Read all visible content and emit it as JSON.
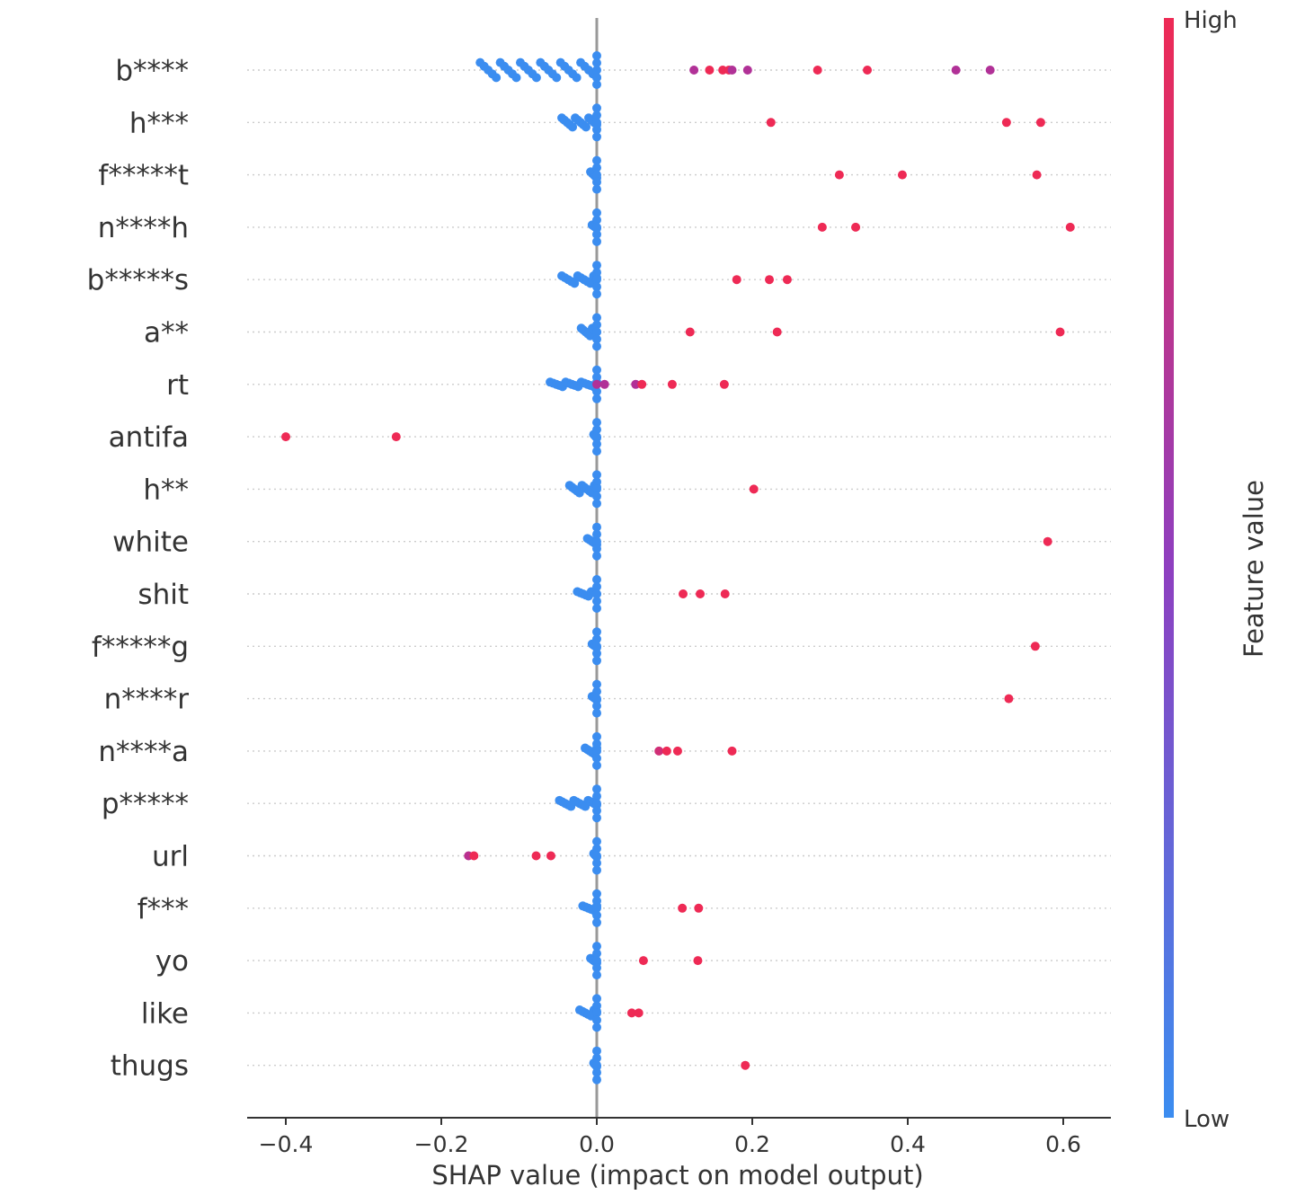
{
  "chart_data": {
    "type": "scatter",
    "subtype": "shap-beeswarm",
    "xlabel": "SHAP value (impact on model output)",
    "xlim": [
      -0.45,
      0.61
    ],
    "xticks": [
      -0.4,
      -0.2,
      0.0,
      0.2,
      0.4,
      0.6
    ],
    "xtick_labels": [
      "−0.4",
      "−0.2",
      "0.0",
      "0.2",
      "0.4",
      "0.6"
    ],
    "colorbar": {
      "title": "Feature value",
      "high_label": "High",
      "low_label": "Low",
      "low_color": "#3b8df0",
      "high_color": "#ee2a55",
      "mid_color": "#a233a8"
    },
    "features": [
      {
        "name": "b****",
        "cluster": {
          "from": -0.15,
          "to": 0.0,
          "n": 30,
          "spread": 1.0
        },
        "points": [
          [
            0.125,
            0.6
          ],
          [
            0.145,
            1.0
          ],
          [
            0.162,
            1.0
          ],
          [
            0.17,
            1.0
          ],
          [
            0.174,
            0.6
          ],
          [
            0.194,
            0.6
          ],
          [
            0.284,
            1.0
          ],
          [
            0.348,
            1.0
          ],
          [
            0.462,
            0.6
          ],
          [
            0.506,
            0.6
          ]
        ]
      },
      {
        "name": "h***",
        "cluster": {
          "from": -0.045,
          "to": 0.0,
          "n": 14,
          "spread": 0.6
        },
        "points": [
          [
            0.224,
            1.0
          ],
          [
            0.527,
            1.0
          ],
          [
            0.571,
            1.0
          ]
        ]
      },
      {
        "name": "f*****t",
        "cluster": {
          "from": -0.008,
          "to": 0.0,
          "n": 5,
          "spread": 0.4
        },
        "points": [
          [
            0.312,
            1.0
          ],
          [
            0.393,
            1.0
          ],
          [
            0.566,
            1.0
          ]
        ]
      },
      {
        "name": "n****h",
        "cluster": {
          "from": -0.006,
          "to": 0.0,
          "n": 4,
          "spread": 0.3
        },
        "points": [
          [
            0.29,
            1.0
          ],
          [
            0.333,
            1.0
          ],
          [
            0.609,
            1.0
          ]
        ]
      },
      {
        "name": "b*****s",
        "cluster": {
          "from": -0.045,
          "to": 0.0,
          "n": 12,
          "spread": 0.5
        },
        "points": [
          [
            0.18,
            1.0
          ],
          [
            0.222,
            1.0
          ],
          [
            0.245,
            1.0
          ]
        ]
      },
      {
        "name": "a**",
        "cluster": {
          "from": -0.02,
          "to": 0.0,
          "n": 8,
          "spread": 0.5
        },
        "points": [
          [
            0.12,
            1.0
          ],
          [
            0.232,
            1.0
          ],
          [
            0.596,
            1.0
          ]
        ]
      },
      {
        "name": "rt",
        "cluster": {
          "from": -0.06,
          "to": 0.0,
          "n": 16,
          "spread": 0.3
        },
        "points": [
          [
            0.0,
            0.6
          ],
          [
            0.01,
            0.6
          ],
          [
            0.05,
            0.6
          ],
          [
            0.058,
            1.0
          ],
          [
            0.097,
            1.0
          ],
          [
            0.164,
            1.0
          ]
        ]
      },
      {
        "name": "antifa",
        "cluster": {
          "from": -0.004,
          "to": 0.0,
          "n": 4,
          "spread": 0.3
        },
        "points": [
          [
            -0.4,
            1.0
          ],
          [
            -0.258,
            1.0
          ]
        ]
      },
      {
        "name": "h**",
        "cluster": {
          "from": -0.035,
          "to": 0.0,
          "n": 12,
          "spread": 0.5
        },
        "points": [
          [
            0.202,
            1.0
          ]
        ]
      },
      {
        "name": "white",
        "cluster": {
          "from": -0.012,
          "to": 0.0,
          "n": 5,
          "spread": 0.4
        },
        "points": [
          [
            0.58,
            1.0
          ]
        ]
      },
      {
        "name": "shit",
        "cluster": {
          "from": -0.025,
          "to": 0.0,
          "n": 8,
          "spread": 0.3
        },
        "points": [
          [
            0.111,
            1.0
          ],
          [
            0.133,
            1.0
          ],
          [
            0.165,
            1.0
          ]
        ]
      },
      {
        "name": "f*****g",
        "cluster": {
          "from": -0.006,
          "to": 0.0,
          "n": 4,
          "spread": 0.3
        },
        "points": [
          [
            0.564,
            1.0
          ]
        ]
      },
      {
        "name": "n****r",
        "cluster": {
          "from": -0.006,
          "to": 0.0,
          "n": 4,
          "spread": 0.3
        },
        "points": [
          [
            0.53,
            1.0
          ]
        ]
      },
      {
        "name": "n****a",
        "cluster": {
          "from": -0.015,
          "to": 0.0,
          "n": 6,
          "spread": 0.4
        },
        "points": [
          [
            0.08,
            0.8
          ],
          [
            0.09,
            1.0
          ],
          [
            0.104,
            1.0
          ],
          [
            0.174,
            1.0
          ]
        ]
      },
      {
        "name": "p*****",
        "cluster": {
          "from": -0.048,
          "to": 0.0,
          "n": 14,
          "spread": 0.4
        },
        "points": []
      },
      {
        "name": "url",
        "cluster": {
          "from": -0.004,
          "to": 0.0,
          "n": 4,
          "spread": 0.3
        },
        "points": [
          [
            -0.165,
            0.65
          ],
          [
            -0.158,
            1.0
          ],
          [
            -0.078,
            1.0
          ],
          [
            -0.059,
            1.0
          ]
        ]
      },
      {
        "name": "f***",
        "cluster": {
          "from": -0.018,
          "to": 0.0,
          "n": 6,
          "spread": 0.3
        },
        "points": [
          [
            0.11,
            1.0
          ],
          [
            0.131,
            1.0
          ]
        ]
      },
      {
        "name": "yo",
        "cluster": {
          "from": -0.008,
          "to": 0.0,
          "n": 5,
          "spread": 0.3
        },
        "points": [
          [
            0.06,
            1.0
          ],
          [
            0.13,
            1.0
          ]
        ]
      },
      {
        "name": "like",
        "cluster": {
          "from": -0.022,
          "to": 0.0,
          "n": 7,
          "spread": 0.4
        },
        "points": [
          [
            0.045,
            1.0
          ],
          [
            0.054,
            1.0
          ]
        ]
      },
      {
        "name": "thugs",
        "cluster": {
          "from": -0.004,
          "to": 0.0,
          "n": 4,
          "spread": 0.3
        },
        "points": [
          [
            0.191,
            1.0
          ]
        ]
      }
    ]
  }
}
